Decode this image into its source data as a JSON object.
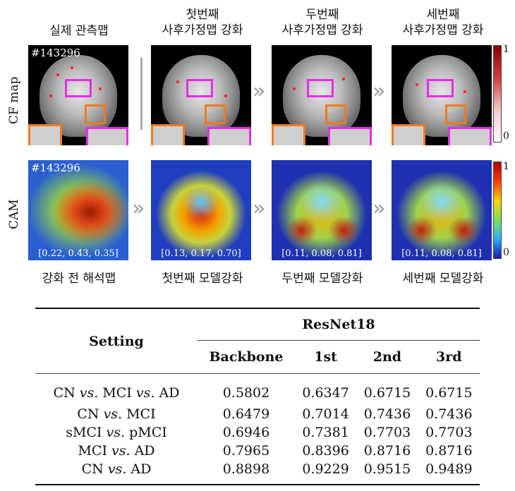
{
  "figure": {
    "column_headers": [
      [
        "실제 관측맵"
      ],
      [
        "첫번째",
        "사후가정맵 강화"
      ],
      [
        "두번째",
        "사후가정맵 강화"
      ],
      [
        "세번째",
        "사후가정맵 강화"
      ]
    ],
    "row_labels": {
      "cf": "CF map",
      "cam": "CAM"
    },
    "subject_id": "#143296",
    "cf_colorbar": {
      "max": "1",
      "min": "0",
      "colors": [
        "#8b0000",
        "#ffffff"
      ]
    },
    "cam_colorbar": {
      "max": "1",
      "min": "0",
      "colors": [
        "#b40000",
        "#ffd200",
        "#2ab0ff",
        "#1a1aa8"
      ]
    },
    "cam_values": [
      "[0.22, 0.43, 0.35]",
      "[0.13, 0.17, 0.70]",
      "[0.11, 0.08, 0.81]",
      "[0.11, 0.08, 0.81]"
    ],
    "footer_labels": [
      "강화 전 해석맵",
      "첫번째 모델강화",
      "두번째 모델강화",
      "세번째 모델강화"
    ],
    "arrow_glyph": "»",
    "box_colors": {
      "magenta": "#e62ee6",
      "orange": "#f07a1e"
    }
  },
  "table": {
    "setting_header": "Setting",
    "group_header": "ResNet18",
    "columns": [
      "Backbone",
      "1st",
      "2nd",
      "3rd"
    ],
    "rows": [
      {
        "setting_a": "CN",
        "vs1": "vs.",
        "setting_b": "MCI",
        "vs2": "vs.",
        "setting_c": "AD",
        "values": [
          "0.5802",
          "0.6347",
          "0.6715",
          "0.6715"
        ]
      },
      {
        "setting_a": "CN",
        "vs1": "vs.",
        "setting_b": "MCI",
        "values": [
          "0.6479",
          "0.7014",
          "0.7436",
          "0.7436"
        ]
      },
      {
        "setting_a": "sMCI",
        "vs1": "vs.",
        "setting_b": "pMCI",
        "values": [
          "0.6946",
          "0.7381",
          "0.7703",
          "0.7703"
        ]
      },
      {
        "setting_a": "MCI",
        "vs1": "vs.",
        "setting_b": "AD",
        "values": [
          "0.7965",
          "0.8396",
          "0.8716",
          "0.8716"
        ]
      },
      {
        "setting_a": "CN",
        "vs1": "vs.",
        "setting_b": "AD",
        "values": [
          "0.8898",
          "0.9229",
          "0.9515",
          "0.9489"
        ]
      }
    ]
  }
}
